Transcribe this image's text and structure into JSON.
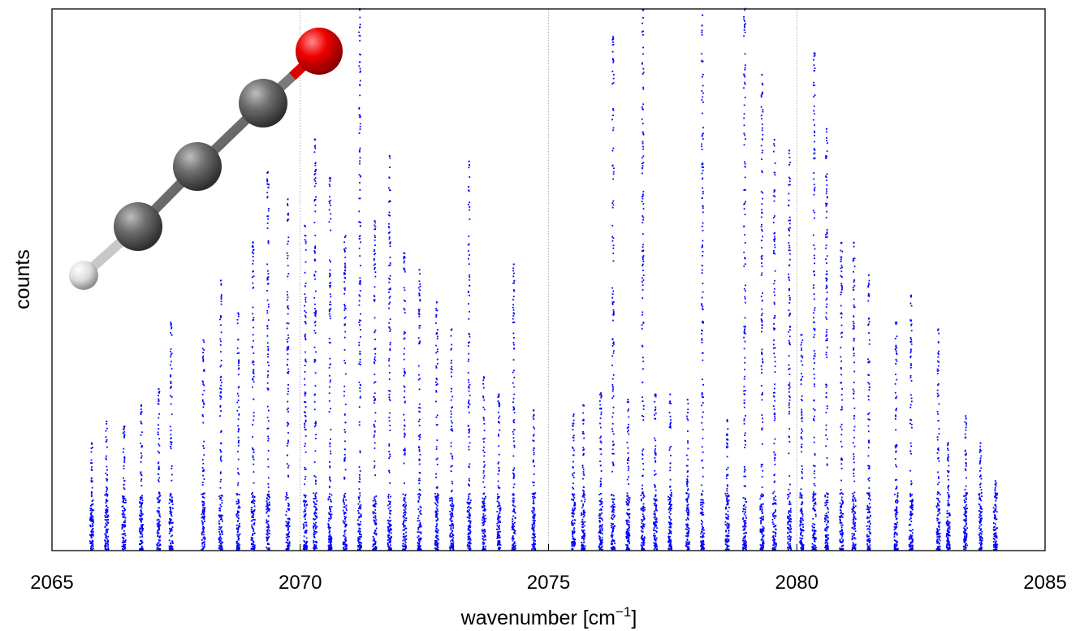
{
  "chart_data": {
    "type": "scatter",
    "xlabel": "wavenumber [cm",
    "xlabel_sup": "−1",
    "xlabel_suffix": "]",
    "ylabel": "counts",
    "xlim": [
      2065,
      2085
    ],
    "ylim": [
      0,
      1
    ],
    "x_ticks": [
      2065,
      2070,
      2075,
      2080,
      2085
    ],
    "x_tick_labels": [
      "2065",
      "2070",
      "2075",
      "2080",
      "2085"
    ],
    "y_ticks_shown": false,
    "grid": "vertical dotted lines at x ticks",
    "marker_color": "#0000ff",
    "lines": [
      {
        "x": 2065.8,
        "y": 0.2
      },
      {
        "x": 2066.1,
        "y": 0.24
      },
      {
        "x": 2066.45,
        "y": 0.23
      },
      {
        "x": 2066.8,
        "y": 0.27
      },
      {
        "x": 2067.15,
        "y": 0.3
      },
      {
        "x": 2067.4,
        "y": 0.42
      },
      {
        "x": 2068.05,
        "y": 0.39
      },
      {
        "x": 2068.4,
        "y": 0.5
      },
      {
        "x": 2068.75,
        "y": 0.44
      },
      {
        "x": 2069.05,
        "y": 0.57
      },
      {
        "x": 2069.35,
        "y": 0.7
      },
      {
        "x": 2069.75,
        "y": 0.65
      },
      {
        "x": 2070.1,
        "y": 0.6
      },
      {
        "x": 2070.3,
        "y": 0.76
      },
      {
        "x": 2070.6,
        "y": 0.69
      },
      {
        "x": 2070.9,
        "y": 0.58
      },
      {
        "x": 2071.2,
        "y": 1.0
      },
      {
        "x": 2071.5,
        "y": 0.61
      },
      {
        "x": 2071.8,
        "y": 0.73
      },
      {
        "x": 2072.1,
        "y": 0.55
      },
      {
        "x": 2072.4,
        "y": 0.52
      },
      {
        "x": 2072.75,
        "y": 0.46
      },
      {
        "x": 2073.05,
        "y": 0.41
      },
      {
        "x": 2073.4,
        "y": 0.72
      },
      {
        "x": 2073.7,
        "y": 0.32
      },
      {
        "x": 2074.0,
        "y": 0.29
      },
      {
        "x": 2074.3,
        "y": 0.53
      },
      {
        "x": 2074.7,
        "y": 0.26
      },
      {
        "x": 2075.5,
        "y": 0.25
      },
      {
        "x": 2075.7,
        "y": 0.27
      },
      {
        "x": 2076.05,
        "y": 0.29
      },
      {
        "x": 2076.3,
        "y": 0.95
      },
      {
        "x": 2076.6,
        "y": 0.28
      },
      {
        "x": 2076.9,
        "y": 1.0
      },
      {
        "x": 2077.15,
        "y": 0.29
      },
      {
        "x": 2077.45,
        "y": 0.29
      },
      {
        "x": 2077.8,
        "y": 0.28
      },
      {
        "x": 2078.1,
        "y": 0.99
      },
      {
        "x": 2078.6,
        "y": 0.24
      },
      {
        "x": 2078.95,
        "y": 1.0
      },
      {
        "x": 2079.3,
        "y": 0.88
      },
      {
        "x": 2079.55,
        "y": 0.76
      },
      {
        "x": 2079.85,
        "y": 0.74
      },
      {
        "x": 2080.1,
        "y": 0.4
      },
      {
        "x": 2080.35,
        "y": 0.92
      },
      {
        "x": 2080.6,
        "y": 0.78
      },
      {
        "x": 2080.9,
        "y": 0.57
      },
      {
        "x": 2081.15,
        "y": 0.57
      },
      {
        "x": 2081.45,
        "y": 0.51
      },
      {
        "x": 2082.0,
        "y": 0.42
      },
      {
        "x": 2082.3,
        "y": 0.47
      },
      {
        "x": 2082.85,
        "y": 0.41
      },
      {
        "x": 2083.05,
        "y": 0.2
      },
      {
        "x": 2083.4,
        "y": 0.25
      },
      {
        "x": 2083.7,
        "y": 0.2
      },
      {
        "x": 2084.0,
        "y": 0.13
      }
    ],
    "inset_image": "molecule-model (H–C≡C–C=O, ball-and-stick: white H, three grey C, red O)"
  }
}
